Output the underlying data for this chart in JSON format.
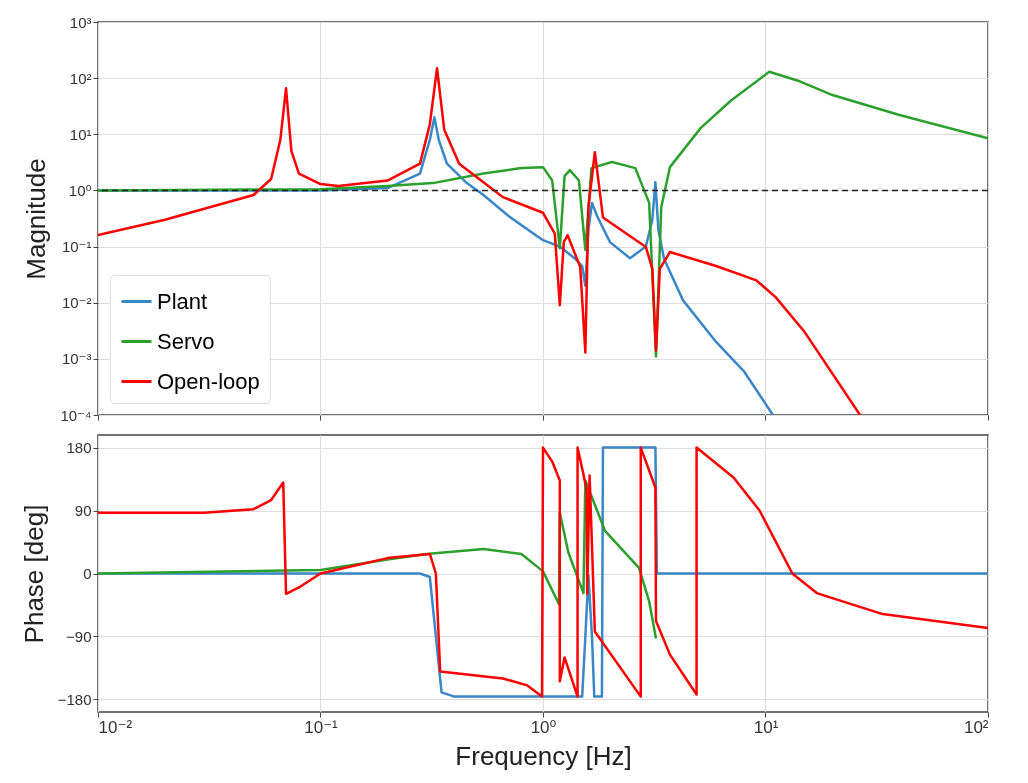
{
  "chart_data": [
    {
      "type": "line",
      "ylabel": "Magnitude",
      "log": "xy",
      "xlim": [
        0.01,
        100
      ],
      "ylim": [
        0.0001,
        1000
      ],
      "xticks": [
        {
          "value": 0.01,
          "label": null
        },
        {
          "value": 0.1,
          "label": null
        },
        {
          "value": 1,
          "label": null
        },
        {
          "value": 10,
          "label": null
        },
        {
          "value": 100,
          "label": null
        }
      ],
      "yticks": [
        {
          "value": 0.0001,
          "label": "10⁻⁴"
        },
        {
          "value": 0.001,
          "label": "10⁻³"
        },
        {
          "value": 0.01,
          "label": "10⁻²"
        },
        {
          "value": 0.1,
          "label": "10⁻¹"
        },
        {
          "value": 1,
          "label": "10⁰"
        },
        {
          "value": 10,
          "label": "10¹"
        },
        {
          "value": 100,
          "label": "10²"
        },
        {
          "value": 1000,
          "label": "10³"
        }
      ],
      "tick_labels": "y",
      "grid": true,
      "legend": "bottom left",
      "ref_lines": [
        {
          "axis": "y",
          "value": 1,
          "color": "#222222",
          "line_style": "dashed"
        }
      ],
      "series": [
        {
          "name": "Plant",
          "color": "#3a87c8",
          "x": [
            0.01,
            0.1,
            0.2,
            0.28,
            0.31,
            0.325,
            0.34,
            0.37,
            0.45,
            0.54,
            0.7,
            1.0,
            1.19,
            1.4,
            1.5,
            1.55,
            1.6,
            1.66,
            1.75,
            2.0,
            2.46,
            2.9,
            3.1,
            3.2,
            3.3,
            3.5,
            4.26,
            6,
            8,
            10.8
          ],
          "values": [
            1,
            1,
            1.1,
            2,
            8,
            20,
            8,
            3,
            1.4,
            0.83,
            0.35,
            0.13,
            0.1,
            0.06,
            0.045,
            0.02,
            0.2,
            0.6,
            0.35,
            0.12,
            0.062,
            0.1,
            0.3,
            1.4,
            0.2,
            0.06,
            0.011,
            0.002,
            0.0006,
            0.0001
          ]
        },
        {
          "name": "Servo",
          "color": "#2ca02c",
          "x": [
            0.01,
            0.1,
            0.2,
            0.32,
            0.54,
            0.8,
            1.0,
            1.1,
            1.19,
            1.25,
            1.32,
            1.45,
            1.55,
            1.65,
            2.04,
            2.6,
            3.0,
            3.22,
            3.4,
            3.72,
            5.12,
            7,
            10.4,
            14,
            20,
            40,
            100
          ],
          "values": [
            1,
            1.05,
            1.2,
            1.35,
            2.0,
            2.5,
            2.6,
            1.5,
            0.093,
            1.8,
            2.3,
            1.5,
            0.087,
            2.5,
            3.2,
            2.5,
            0.6,
            0.0011,
            0.5,
            2.6,
            13,
            40,
            130,
            90,
            50,
            22,
            8.5
          ]
        },
        {
          "name": "Open-loop",
          "color": "#ff0000",
          "x": [
            0.01,
            0.02,
            0.05,
            0.06,
            0.066,
            0.07,
            0.074,
            0.08,
            0.1,
            0.12,
            0.2,
            0.28,
            0.31,
            0.334,
            0.36,
            0.42,
            0.54,
            0.66,
            1.0,
            1.13,
            1.19,
            1.24,
            1.29,
            1.47,
            1.55,
            1.6,
            1.71,
            1.86,
            2.9,
            3.1,
            3.22,
            3.35,
            3.72,
            6,
            9.1,
            11.1,
            15,
            26.6
          ],
          "values": [
            0.16,
            0.3,
            0.83,
            1.6,
            8,
            66,
            5,
            2,
            1.3,
            1.2,
            1.5,
            3,
            15,
            150,
            12,
            3,
            1.4,
            0.76,
            0.4,
            0.17,
            0.009,
            0.12,
            0.16,
            0.043,
            0.0013,
            0.5,
            4.8,
            0.33,
            0.098,
            0.04,
            0.0014,
            0.04,
            0.08,
            0.045,
            0.025,
            0.0126,
            0.003,
            0.0001
          ]
        }
      ]
    },
    {
      "type": "line",
      "xlabel": "Frequency [Hz]",
      "ylabel": "Phase [deg]",
      "log": "x",
      "xlim": [
        0.01,
        100
      ],
      "ylim": [
        -198,
        198
      ],
      "xticks": [
        {
          "value": 0.01,
          "label": "10⁻²"
        },
        {
          "value": 0.1,
          "label": "10⁻¹"
        },
        {
          "value": 1,
          "label": "10⁰"
        },
        {
          "value": 10,
          "label": "10¹"
        },
        {
          "value": 100,
          "label": "10²"
        }
      ],
      "yticks": [
        {
          "value": -180,
          "label": "−180"
        },
        {
          "value": -90,
          "label": "−90"
        },
        0,
        90,
        180
      ],
      "grid": true,
      "series": [
        {
          "color": "#3a87c8",
          "x": [
            0.01,
            0.28,
            0.31,
            0.33,
            0.35,
            0.4,
            1.5,
            1.55,
            1.6,
            1.66,
            1.7,
            1.84,
            1.86,
            3.2,
            3.25,
            100
          ],
          "values": [
            0,
            0,
            -5,
            -90,
            -170,
            -176,
            -176,
            -90,
            -3,
            -90,
            -176,
            -176,
            180,
            180,
            0,
            0
          ]
        },
        {
          "color": "#2ca02c",
          "x": [
            0.01,
            0.1,
            0.2,
            0.3,
            0.54,
            0.8,
            1.0,
            1.18,
            1.19,
            1.3,
            1.52,
            1.55,
            1.9,
            2.7,
            3.0,
            3.22
          ],
          "values": [
            0,
            5,
            20,
            28,
            35,
            28,
            3,
            -44,
            87,
            30,
            -28,
            133,
            61,
            8,
            -40,
            -93
          ]
        },
        {
          "color": "#ff0000",
          "x": [
            0.01,
            0.03,
            0.05,
            0.06,
            0.068,
            0.07,
            0.08,
            0.1,
            0.2,
            0.31,
            0.33,
            0.345,
            0.66,
            0.85,
            0.99,
            1.0,
            1.1,
            1.19,
            1.19,
            1.25,
            1.43,
            1.43,
            1.5,
            1.57,
            1.58,
            1.62,
            1.71,
            2.75,
            2.75,
            3.2,
            3.22,
            3.72,
            4.9,
            4.9,
            7.2,
            9.4,
            13.2,
            17,
            33.6,
            100
          ],
          "values": [
            87,
            87,
            92,
            105,
            130,
            -29,
            -20,
            0,
            22,
            28,
            0,
            -140,
            -150,
            -160,
            -176,
            180,
            160,
            133,
            -154,
            -120,
            -176,
            180,
            150,
            120,
            -29,
            140,
            -83,
            -176,
            180,
            123,
            -68,
            -116,
            -173,
            180,
            137,
            90,
            0,
            -28,
            -58,
            -78
          ]
        }
      ]
    }
  ]
}
